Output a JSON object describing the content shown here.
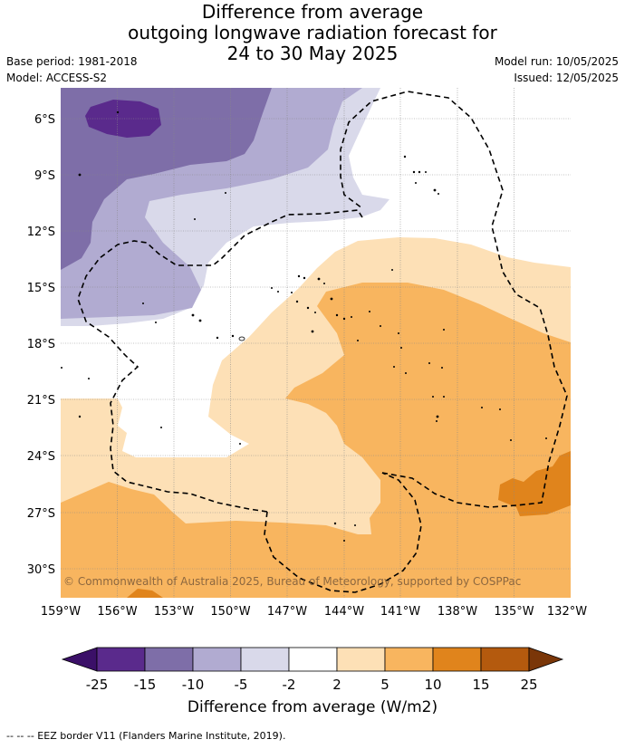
{
  "title": {
    "line1": "Difference from average",
    "line2": "outgoing longwave radiation forecast for",
    "line3": "24 to 30 May 2025"
  },
  "meta": {
    "base_period": "Base period: 1981-2018",
    "model": "Model: ACCESS-S2",
    "model_run": "Model run: 10/05/2025",
    "issued": "Issued: 12/05/2025"
  },
  "map": {
    "lat_labels": [
      "6°S",
      "9°S",
      "12°S",
      "15°S",
      "18°S",
      "21°S",
      "24°S",
      "27°S",
      "30°S"
    ],
    "lon_labels": [
      "159°W",
      "156°W",
      "153°W",
      "150°W",
      "147°W",
      "144°W",
      "141°W",
      "138°W",
      "135°W",
      "132°W"
    ],
    "copyright": "© Commonwealth of Australia 2025, Bureau of Meteorology, supported by COSPPac",
    "gridlines": true,
    "colors": {
      "neg25": "#3b1068",
      "neg15": "#5a2a8c",
      "neg10": "#7e6ea8",
      "neg5": "#b1abd1",
      "neg2": "#d9d9ea",
      "zero": "#ffffff",
      "pos2": "#fde0b6",
      "pos5": "#f8b55f",
      "pos10": "#e0841c",
      "pos15": "#b45a0e",
      "pos25": "#7a3608"
    }
  },
  "colorbar": {
    "ticks": [
      "-25",
      "-15",
      "-10",
      "-5",
      "-2",
      "2",
      "5",
      "10",
      "15",
      "25"
    ],
    "label": "Difference from average (W/m2)"
  },
  "footer": "--  --  -- EEZ border V11 (Flanders Marine Institute, 2019)."
}
